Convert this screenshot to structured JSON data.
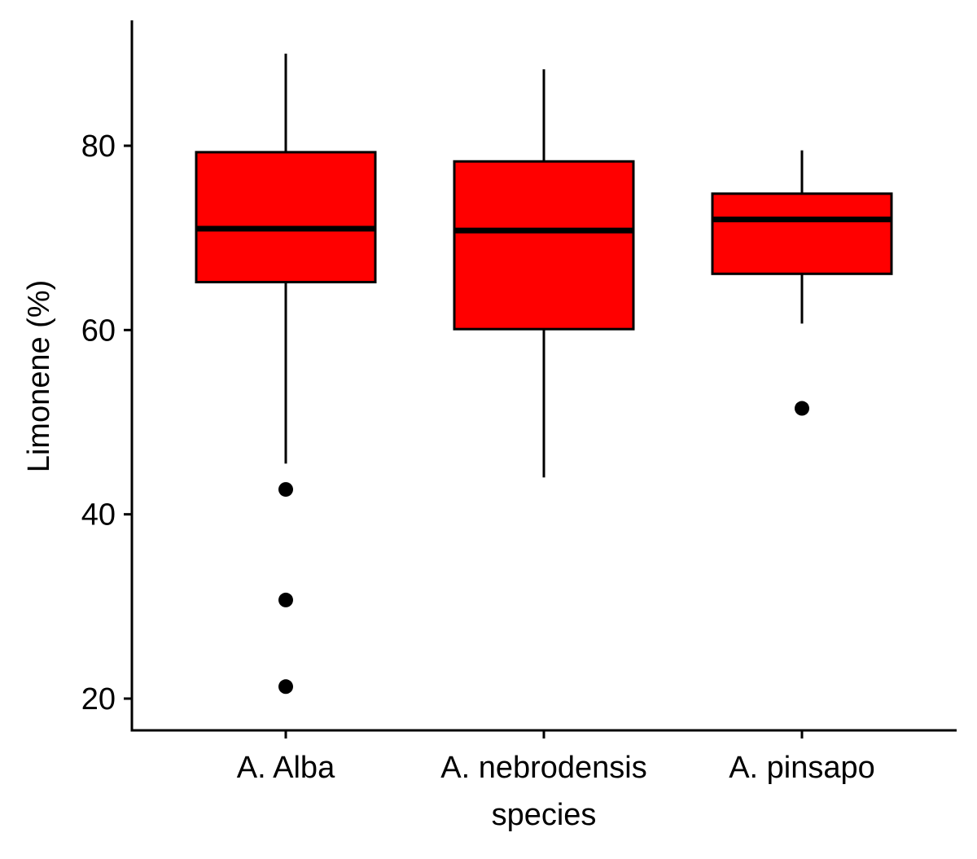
{
  "chart_data": {
    "type": "boxplot",
    "title": "",
    "xlabel": "species",
    "ylabel": "Limonene (%)",
    "categories": [
      "A. Alba",
      "A. nebrodensis",
      "A. pinsapo"
    ],
    "ylim": [
      16.5,
      93
    ],
    "yticks": [
      20,
      40,
      60,
      80
    ],
    "ytick_labels": [
      "20",
      "40",
      "60",
      "80"
    ],
    "grid": false,
    "legend": "none",
    "fill_color": "#ff0000",
    "line_color": "#000000",
    "boxes": [
      {
        "category": "A. Alba",
        "whisker_low": 45.5,
        "q1": 65.2,
        "median": 71.0,
        "q3": 79.3,
        "whisker_high": 90.0,
        "outliers": [
          42.7,
          30.7,
          21.3
        ]
      },
      {
        "category": "A. nebrodensis",
        "whisker_low": 44.0,
        "q1": 60.1,
        "median": 70.8,
        "q3": 78.3,
        "whisker_high": 88.3,
        "outliers": []
      },
      {
        "category": "A. pinsapo",
        "whisker_low": 60.7,
        "q1": 66.1,
        "median": 72.0,
        "q3": 74.8,
        "whisker_high": 79.5,
        "outliers": [
          51.5
        ]
      }
    ]
  }
}
